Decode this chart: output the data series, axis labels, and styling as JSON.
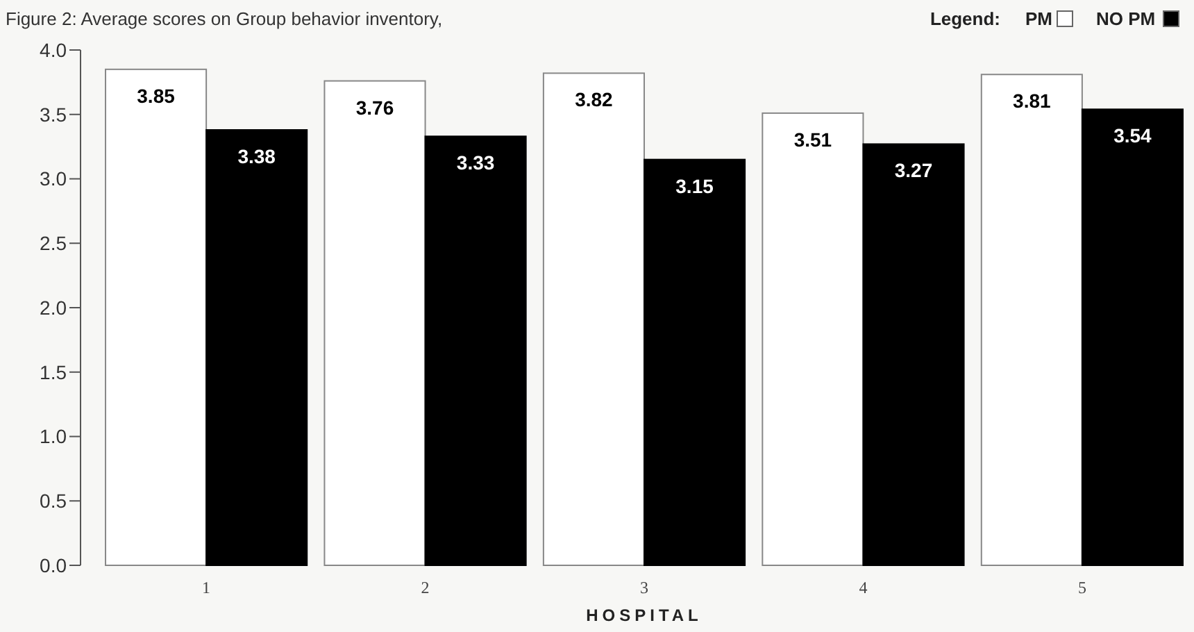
{
  "chart_data": {
    "type": "bar",
    "title": "Figure 2: Average scores on Group behavior inventory,",
    "xlabel": "HOSPITAL",
    "categories": [
      "1",
      "2",
      "3",
      "4",
      "5"
    ],
    "series": [
      {
        "name": "PM",
        "color": "#ffffff",
        "values": [
          3.85,
          3.76,
          3.82,
          3.51,
          3.81
        ]
      },
      {
        "name": "NO PM",
        "color": "#000000",
        "values": [
          3.38,
          3.33,
          3.15,
          3.27,
          3.54
        ]
      }
    ],
    "legend_title": "Legend:",
    "legend": "top right",
    "ylim": [
      0,
      4
    ],
    "yticks": [
      {
        "value": 0,
        "label": "0.0"
      },
      {
        "value": 0.5,
        "label": "0.5"
      },
      {
        "value": 1,
        "label": "1.0"
      },
      {
        "value": 1.5,
        "label": "1.5"
      },
      {
        "value": 2,
        "label": "2.0"
      },
      {
        "value": 2.5,
        "label": "2.5"
      },
      {
        "value": 3,
        "label": "3.0"
      },
      {
        "value": 3.5,
        "label": "3.5"
      },
      {
        "value": 4,
        "label": "4.0"
      }
    ],
    "data_labels": true,
    "grid": false
  }
}
